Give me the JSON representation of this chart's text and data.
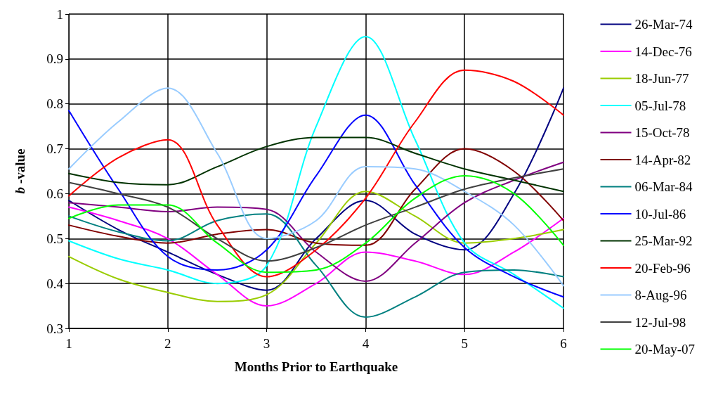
{
  "chart_data": {
    "type": "line",
    "xlabel": "Months Prior to Earthquake",
    "ylabel": "b -value",
    "x": [
      1,
      1.5,
      2,
      2.5,
      3,
      3.5,
      4,
      4.5,
      5,
      5.5,
      6
    ],
    "xlim": [
      1,
      6
    ],
    "xticks": [
      1,
      2,
      3,
      4,
      5,
      6
    ],
    "ylim": [
      0.3,
      1
    ],
    "yticks": [
      0.3,
      0.4,
      0.5,
      0.6,
      0.7,
      0.8,
      0.9,
      1
    ],
    "grid": true,
    "legend": "right",
    "marker": "none",
    "line_style": "solid",
    "series": [
      {
        "name": "26-Mar-74",
        "color": "#000080",
        "values": [
          0.585,
          0.52,
          0.47,
          0.42,
          0.385,
          0.5,
          0.585,
          0.51,
          0.475,
          0.6,
          0.835
        ]
      },
      {
        "name": "14-Dec-76",
        "color": "#ff00ff",
        "values": [
          0.57,
          0.54,
          0.5,
          0.42,
          0.35,
          0.4,
          0.47,
          0.45,
          0.42,
          0.47,
          0.545
        ]
      },
      {
        "name": "18-Jun-77",
        "color": "#99cc00",
        "values": [
          0.46,
          0.41,
          0.38,
          0.36,
          0.375,
          0.49,
          0.605,
          0.55,
          0.49,
          0.5,
          0.52
        ]
      },
      {
        "name": "05-Jul-78",
        "color": "#00ffff",
        "values": [
          0.495,
          0.455,
          0.43,
          0.4,
          0.44,
          0.75,
          0.95,
          0.72,
          0.49,
          0.42,
          0.345
        ]
      },
      {
        "name": "15-Oct-78",
        "color": "#800080",
        "values": [
          0.58,
          0.57,
          0.56,
          0.57,
          0.565,
          0.47,
          0.405,
          0.49,
          0.58,
          0.63,
          0.67
        ]
      },
      {
        "name": "14-Apr-82",
        "color": "#800000",
        "values": [
          0.53,
          0.505,
          0.49,
          0.51,
          0.52,
          0.49,
          0.485,
          0.61,
          0.7,
          0.65,
          0.54
        ]
      },
      {
        "name": "06-Mar-84",
        "color": "#008080",
        "values": [
          0.55,
          0.515,
          0.495,
          0.54,
          0.555,
          0.44,
          0.325,
          0.37,
          0.425,
          0.43,
          0.415
        ]
      },
      {
        "name": "10-Jul-86",
        "color": "#0000ff",
        "values": [
          0.785,
          0.61,
          0.46,
          0.43,
          0.475,
          0.64,
          0.775,
          0.62,
          0.48,
          0.415,
          0.37
        ]
      },
      {
        "name": "25-Mar-92",
        "color": "#003300",
        "values": [
          0.645,
          0.625,
          0.62,
          0.66,
          0.705,
          0.725,
          0.725,
          0.69,
          0.655,
          0.63,
          0.605
        ]
      },
      {
        "name": "20-Feb-96",
        "color": "#ff0000",
        "values": [
          0.595,
          0.68,
          0.72,
          0.53,
          0.415,
          0.475,
          0.59,
          0.76,
          0.875,
          0.85,
          0.775
        ]
      },
      {
        "name": "8-Aug-96",
        "color": "#99ccff",
        "values": [
          0.655,
          0.76,
          0.835,
          0.69,
          0.5,
          0.54,
          0.66,
          0.655,
          0.605,
          0.53,
          0.395
        ]
      },
      {
        "name": "12-Jul-98",
        "color": "#404040",
        "values": [
          0.625,
          0.6,
          0.57,
          0.5,
          0.45,
          0.48,
          0.53,
          0.57,
          0.61,
          0.635,
          0.655
        ]
      },
      {
        "name": "20-May-07",
        "color": "#00ff00",
        "values": [
          0.545,
          0.575,
          0.575,
          0.49,
          0.425,
          0.43,
          0.49,
          0.59,
          0.64,
          0.6,
          0.485
        ]
      }
    ]
  }
}
